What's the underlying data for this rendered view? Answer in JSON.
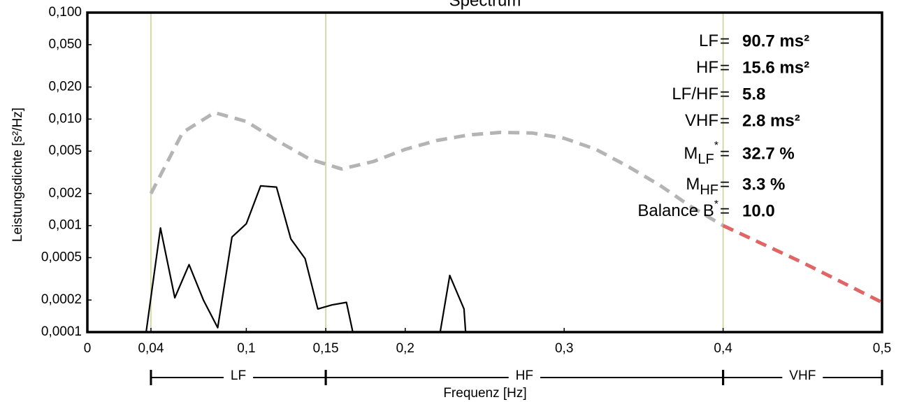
{
  "chart_data": {
    "type": "line",
    "title": "Spectrum",
    "x_label": "Frequenz [Hz]",
    "y_label": "Leistungsdichte [s²/Hz]",
    "log_y": true,
    "xlim": [
      0,
      0.5
    ],
    "ylim": [
      0.0001,
      0.1
    ],
    "xticks": [
      0,
      {
        "value": 0.04,
        "label": "0,04"
      },
      {
        "value": 0.1,
        "label": "0,1"
      },
      {
        "value": 0.15,
        "label": "0,15"
      },
      {
        "value": 0.2,
        "label": "0,2"
      },
      {
        "value": 0.3,
        "label": "0,3"
      },
      {
        "value": 0.4,
        "label": "0,4"
      },
      {
        "value": 0.5,
        "label": "0,5"
      }
    ],
    "yticks": [
      {
        "value": 0.1,
        "label": "0,100"
      },
      {
        "value": 0.05,
        "label": "0,050"
      },
      {
        "value": 0.02,
        "label": "0,020"
      },
      {
        "value": 0.01,
        "label": "0,010"
      },
      {
        "value": 0.005,
        "label": "0,005"
      },
      {
        "value": 0.002,
        "label": "0,002"
      },
      {
        "value": 0.001,
        "label": "0,001"
      },
      {
        "value": 0.0005,
        "label": "0,0005"
      },
      {
        "value": 0.0002,
        "label": "0,0002"
      },
      {
        "value": 0.0001,
        "label": "0,0001"
      }
    ],
    "bands": [
      {
        "name": "LF",
        "from": 0.04,
        "to": 0.15,
        "color": "#c8d08c"
      },
      {
        "name": "HF",
        "from": 0.15,
        "to": 0.4,
        "color": "#c8d08c"
      },
      {
        "name": "VHF",
        "from": 0.4,
        "to": 0.5,
        "color": "#c8d08c"
      }
    ],
    "series": [
      {
        "style": "solid",
        "color": "#000000",
        "x": [
          0.037,
          0.046,
          0.055,
          0.064,
          0.073,
          0.082,
          0.091,
          0.1,
          0.109,
          0.119,
          0.128,
          0.137,
          0.145,
          0.154,
          0.163,
          0.167,
          null,
          0.222,
          0.228,
          0.237,
          0.238
        ],
        "values": [
          0.0001,
          0.00095,
          0.00021,
          0.00043,
          0.0002,
          0.00011,
          0.00078,
          0.00104,
          0.00236,
          0.0023,
          0.00075,
          0.00049,
          0.000165,
          0.00018,
          0.00019,
          0.0001,
          null,
          0.0001,
          0.00034,
          0.000165,
          0.0001
        ]
      },
      {
        "style": "dashed",
        "color": "#b4b4b4",
        "x": [
          0.04,
          0.06,
          0.08,
          0.1,
          0.12,
          0.14,
          0.16,
          0.18,
          0.2,
          0.22,
          0.24,
          0.26,
          0.28,
          0.3,
          0.32,
          0.34,
          0.36,
          0.38,
          0.4
        ],
        "values": [
          0.002,
          0.0075,
          0.0115,
          0.0095,
          0.0062,
          0.0042,
          0.0034,
          0.004,
          0.0052,
          0.0063,
          0.0071,
          0.0075,
          0.0074,
          0.0066,
          0.0052,
          0.0036,
          0.0024,
          0.0015,
          0.001
        ]
      },
      {
        "style": "dashed",
        "color": "#e06666",
        "x": [
          0.4,
          0.45,
          0.5
        ],
        "values": [
          0.001,
          0.00045,
          0.00019
        ]
      }
    ],
    "stats": [
      {
        "name": "LF",
        "value": "90.7 ms²"
      },
      {
        "name": "HF",
        "value": "15.6 ms²"
      },
      {
        "name": "LF/HF",
        "value": "5.8"
      },
      {
        "name": "VHF",
        "value": "2.8 ms²"
      },
      {
        "name": "M",
        "sub": "LF",
        "sup": "*",
        "value": "32.7 %"
      },
      {
        "name": "M",
        "sub": "HF",
        "value": "3.3 %"
      },
      {
        "name": "Balance B",
        "sup": "*",
        "value": "10.0"
      }
    ],
    "equals": "="
  }
}
